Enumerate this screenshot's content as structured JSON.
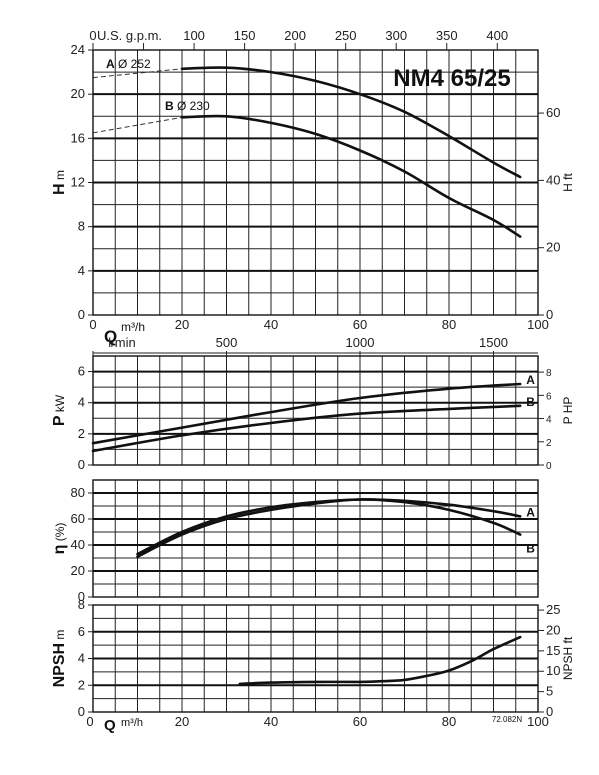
{
  "figure": {
    "title": "NM4 65/25",
    "ref": "72.082N",
    "colors": {
      "ink": "#111111",
      "background": "#ffffff"
    }
  },
  "chart_data": [
    {
      "id": "head",
      "type": "line",
      "x_label_main": "Q",
      "x_unit_main": "m³/h",
      "x_unit_second": "l/min",
      "top_axis_label": "U.S. g.p.m.",
      "ylabel": "H",
      "yunit": "m",
      "ylabel_right": "H ft",
      "xlim": [
        0,
        100
      ],
      "ylim": [
        0,
        24
      ],
      "x_ticks": [
        0,
        20,
        40,
        60,
        80,
        100
      ],
      "y_ticks": [
        0,
        4,
        8,
        12,
        16,
        20,
        24
      ],
      "top_ticks": [
        0,
        50,
        100,
        150,
        200,
        250,
        300,
        350,
        400
      ],
      "top_tick_labels": [
        "0",
        "U.S. g.p.m.",
        "100",
        "150",
        "200",
        "250",
        "300",
        "350",
        "400"
      ],
      "right_ticks": [
        0,
        20,
        40,
        60
      ],
      "series": [
        {
          "name": "A",
          "diameter_label": "Ø 252",
          "x": [
            20,
            30,
            40,
            50,
            60,
            70,
            80,
            90,
            96
          ],
          "y": [
            22.3,
            22.4,
            22.0,
            21.2,
            20.0,
            18.4,
            16.2,
            13.8,
            12.5
          ],
          "extrapolated": {
            "x": [
              0,
              10,
              20
            ],
            "y": [
              21.5,
              21.9,
              22.3
            ]
          }
        },
        {
          "name": "B",
          "diameter_label": "Ø 230",
          "x": [
            20,
            30,
            40,
            50,
            60,
            70,
            80,
            90,
            96
          ],
          "y": [
            17.9,
            18.0,
            17.4,
            16.4,
            14.9,
            13.0,
            10.6,
            8.6,
            7.1
          ],
          "extrapolated": {
            "x": [
              0,
              10,
              20
            ],
            "y": [
              16.5,
              17.2,
              17.9
            ]
          }
        }
      ]
    },
    {
      "id": "power",
      "type": "line",
      "ylabel": "P",
      "yunit": "kW",
      "ylabel_right": "P HP",
      "xlim": [
        0,
        100
      ],
      "ylim": [
        0,
        7
      ],
      "y_ticks": [
        0,
        2,
        4,
        6
      ],
      "right_ticks": [
        0,
        2,
        4,
        6,
        8
      ],
      "series": [
        {
          "name": "A",
          "x": [
            0,
            20,
            40,
            60,
            80,
            96
          ],
          "y": [
            1.4,
            2.4,
            3.4,
            4.3,
            4.9,
            5.2
          ]
        },
        {
          "name": "B",
          "x": [
            0,
            20,
            40,
            60,
            80,
            96
          ],
          "y": [
            0.9,
            1.9,
            2.7,
            3.3,
            3.6,
            3.8
          ]
        }
      ]
    },
    {
      "id": "efficiency",
      "type": "line",
      "ylabel": "η",
      "yunit": "(%)",
      "xlim": [
        0,
        100
      ],
      "ylim": [
        0,
        90
      ],
      "y_ticks": [
        0,
        20,
        40,
        60,
        80
      ],
      "series": [
        {
          "name": "A",
          "x": [
            10,
            20,
            30,
            40,
            50,
            60,
            70,
            80,
            90,
            96
          ],
          "y": [
            33,
            50,
            62,
            69,
            73,
            75,
            74,
            71,
            66,
            62
          ]
        },
        {
          "name": "B",
          "x": [
            10,
            20,
            30,
            40,
            50,
            60,
            70,
            80,
            90,
            96
          ],
          "y": [
            31,
            48,
            60,
            67,
            72,
            75,
            73,
            67,
            57,
            48
          ]
        }
      ]
    },
    {
      "id": "npsh",
      "type": "line",
      "ylabel": "NPSH",
      "yunit": "m",
      "ylabel_right": "NPSH ft",
      "x_label_main": "Q",
      "x_unit_main": "m³/h",
      "xlim": [
        0,
        100
      ],
      "ylim": [
        0,
        8
      ],
      "x_ticks": [
        0,
        20,
        40,
        60,
        80,
        100
      ],
      "y_ticks": [
        0,
        2,
        4,
        6,
        8
      ],
      "right_ticks": [
        0,
        5,
        10,
        15,
        20,
        25
      ],
      "series": [
        {
          "name": "NPSH",
          "x": [
            33,
            40,
            50,
            60,
            65,
            70,
            75,
            80,
            85,
            90,
            96
          ],
          "y": [
            2.1,
            2.2,
            2.25,
            2.25,
            2.3,
            2.4,
            2.7,
            3.1,
            3.8,
            4.7,
            5.6
          ]
        }
      ]
    }
  ],
  "secondary_axes": {
    "lmin_ticks": [
      0,
      500,
      1000,
      1500
    ],
    "lmin_tick_labels": [
      "l/min",
      "500",
      "1000",
      "1500"
    ]
  }
}
